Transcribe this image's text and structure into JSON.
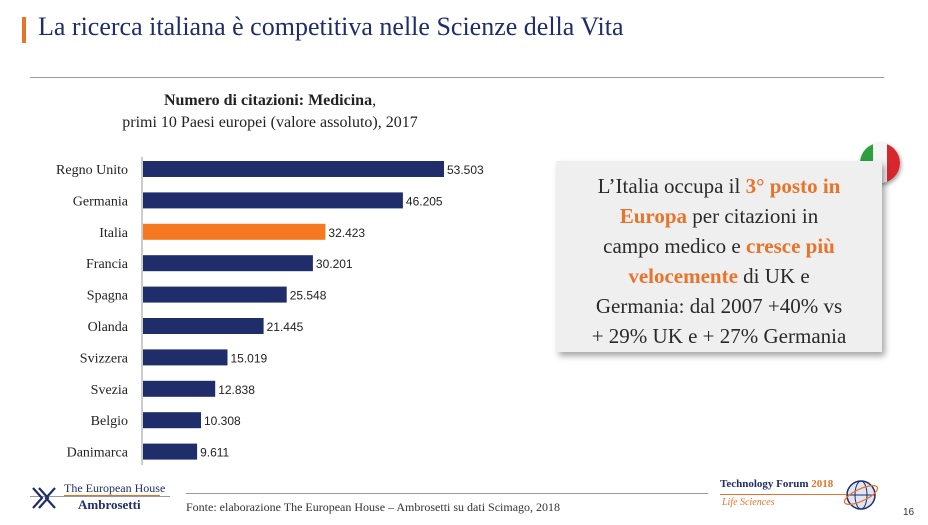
{
  "header": {
    "title": "La ricerca italiana è competitiva nelle Scienze della Vita"
  },
  "chart_data": {
    "type": "bar",
    "orientation": "horizontal",
    "title": "Numero di citazioni: Medicina",
    "title_suffix": ",",
    "subtitle": "primi 10 Paesi europei (valore assoluto), 2017",
    "categories": [
      "Regno Unito",
      "Germania",
      "Italia",
      "Francia",
      "Spagna",
      "Olanda",
      "Svizzera",
      "Svezia",
      "Belgio",
      "Danimarca"
    ],
    "values": [
      53503,
      46205,
      32423,
      30201,
      25548,
      21445,
      15019,
      12838,
      10308,
      9611
    ],
    "value_labels": [
      "53.503",
      "46.205",
      "32.423",
      "30.201",
      "25.548",
      "21.445",
      "15.019",
      "12.838",
      "10.308",
      "9.611"
    ],
    "highlight_category": "Italia",
    "colors": {
      "default": "#1f2d6b",
      "highlight": "#f47920"
    },
    "grid": false,
    "xlim": [
      0,
      53503
    ]
  },
  "callout": {
    "line1_pre": "L’Italia occupa il ",
    "line1_hl": "3° posto in",
    "line2_hl": "Europa",
    "line2_post": " per citazioni in",
    "line3_pre": "campo medico e ",
    "line3_hl": "cresce più",
    "line4_hl": "velocemente",
    "line4_post": " di UK e",
    "line5": "Germania: dal 2007 +40% vs",
    "line6": "+ 29% UK e + 27% Germania"
  },
  "footer": {
    "logo_line1": "The European House",
    "logo_line2": "Ambrosetti",
    "source": "Fonte: elaborazione The European House – Ambrosetti su dati Scimago, 2018",
    "event_title": "Technology Forum",
    "event_year": "2018",
    "event_subtitle": "Life Sciences",
    "page_number": "16"
  },
  "icons": {
    "flag": "italy-flag-icon",
    "logo": "ambrosetti-logo-icon",
    "globe": "technology-forum-globe-icon"
  }
}
